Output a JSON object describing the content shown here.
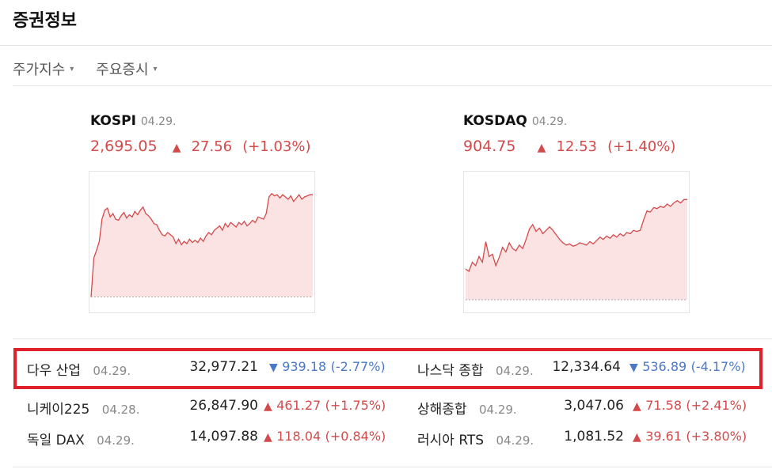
{
  "header": {
    "title": "증권정보"
  },
  "tabs": [
    {
      "label": "주가지수",
      "caret": "▾"
    },
    {
      "label": "주요증시",
      "caret": "▾"
    }
  ],
  "indices": [
    {
      "name": "KOSPI",
      "date": "04.29.",
      "value": "2,695.05",
      "arrow": "▲",
      "change": "27.56",
      "pct": "(+1.03%)",
      "series": [
        0.0,
        0.35,
        0.42,
        0.5,
        0.7,
        0.78,
        0.8,
        0.72,
        0.75,
        0.7,
        0.69,
        0.73,
        0.76,
        0.71,
        0.74,
        0.72,
        0.77,
        0.74,
        0.78,
        0.81,
        0.75,
        0.73,
        0.7,
        0.66,
        0.65,
        0.6,
        0.56,
        0.55,
        0.58,
        0.56,
        0.54,
        0.48,
        0.52,
        0.47,
        0.5,
        0.48,
        0.52,
        0.49,
        0.51,
        0.49,
        0.53,
        0.5,
        0.55,
        0.58,
        0.56,
        0.6,
        0.62,
        0.64,
        0.6,
        0.66,
        0.63,
        0.67,
        0.65,
        0.63,
        0.67,
        0.65,
        0.68,
        0.64,
        0.66,
        0.69,
        0.67,
        0.72,
        0.71,
        0.7,
        0.75,
        0.9,
        0.93,
        0.91,
        0.92,
        0.89,
        0.92,
        0.9,
        0.88,
        0.91,
        0.86,
        0.89,
        0.92,
        0.88,
        0.9,
        0.91,
        0.92,
        0.92
      ]
    },
    {
      "name": "KOSDAQ",
      "date": "04.29.",
      "value": "904.75",
      "arrow": "▲",
      "change": "12.53",
      "pct": "(+1.40%)",
      "series": [
        0.27,
        0.25,
        0.33,
        0.3,
        0.38,
        0.33,
        0.51,
        0.38,
        0.4,
        0.3,
        0.37,
        0.46,
        0.42,
        0.5,
        0.45,
        0.43,
        0.48,
        0.45,
        0.53,
        0.62,
        0.66,
        0.6,
        0.63,
        0.58,
        0.61,
        0.64,
        0.61,
        0.57,
        0.53,
        0.5,
        0.48,
        0.49,
        0.47,
        0.48,
        0.5,
        0.49,
        0.48,
        0.51,
        0.49,
        0.52,
        0.55,
        0.53,
        0.56,
        0.54,
        0.57,
        0.55,
        0.58,
        0.56,
        0.59,
        0.58,
        0.61,
        0.6,
        0.61,
        0.7,
        0.78,
        0.77,
        0.81,
        0.8,
        0.82,
        0.81,
        0.84,
        0.82,
        0.85,
        0.87,
        0.85,
        0.88,
        0.88
      ]
    }
  ],
  "markets": [
    {
      "name": "다우 산업",
      "date": "04.29.",
      "value": "32,977.21",
      "arrow": "▼",
      "change": "939.18",
      "pct": "(-2.77%)",
      "dir": "down"
    },
    {
      "name": "나스닥 종합",
      "date": "04.29.",
      "value": "12,334.64",
      "arrow": "▼",
      "change": "536.89",
      "pct": "(-4.17%)",
      "dir": "down"
    },
    {
      "name": "니케이225",
      "date": "04.28.",
      "value": "26,847.90",
      "arrow": "▲",
      "change": "461.27",
      "pct": "(+1.75%)",
      "dir": "up"
    },
    {
      "name": "상해종합",
      "date": "04.29.",
      "value": "3,047.06",
      "arrow": "▲",
      "change": "71.58",
      "pct": "(+2.41%)",
      "dir": "up"
    },
    {
      "name": "독일 DAX",
      "date": "04.29.",
      "value": "14,097.88",
      "arrow": "▲",
      "change": "118.04",
      "pct": "(+0.84%)",
      "dir": "up"
    },
    {
      "name": "러시아 RTS",
      "date": "04.29.",
      "value": "1,081.52",
      "arrow": "▲",
      "change": "39.61",
      "pct": "(+3.80%)",
      "dir": "up"
    }
  ],
  "colors": {
    "up": "#d44a4a",
    "down": "#4a78c8",
    "fill": "#fbe3e3",
    "highlight": "#e0202a"
  }
}
